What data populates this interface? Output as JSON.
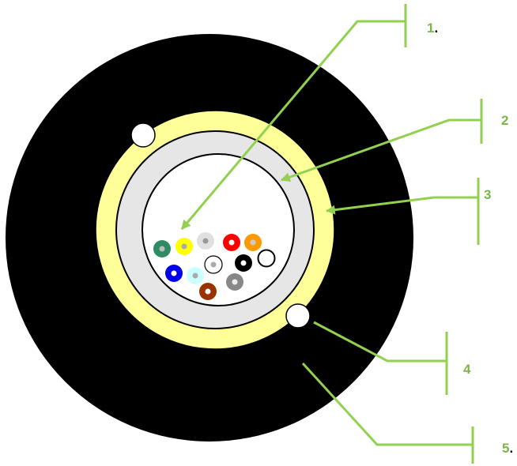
{
  "labels": [
    {
      "number": "1",
      "suffix": "."
    },
    {
      "number": "2"
    },
    {
      "number": "3"
    },
    {
      "number": "4"
    },
    {
      "number": "5",
      "suffix": "."
    }
  ]
}
